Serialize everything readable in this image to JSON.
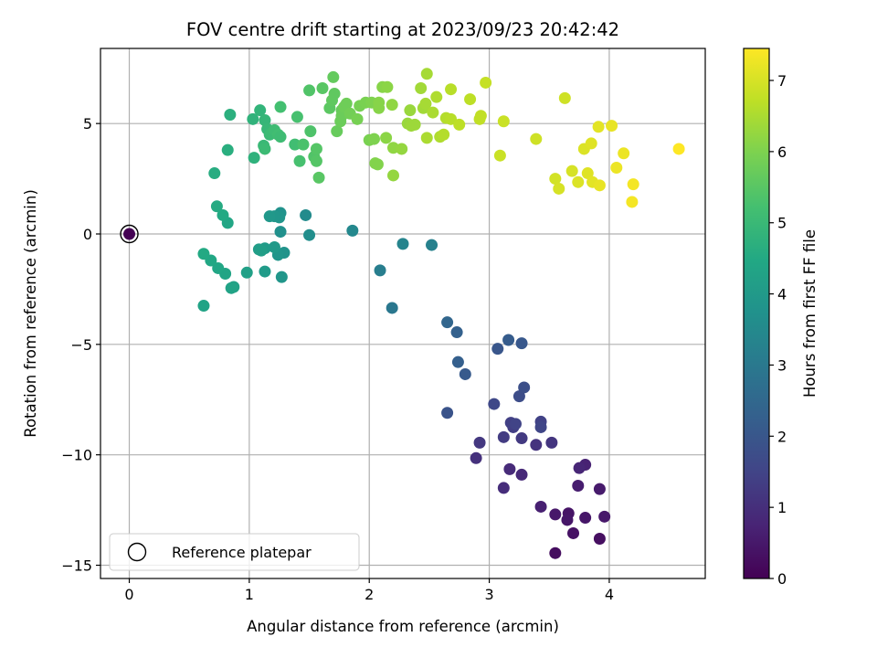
{
  "chart_data": {
    "type": "scatter",
    "title": "FOV centre drift starting at 2023/09/23 20:42:42",
    "xlabel": "Angular distance from reference (arcmin)",
    "ylabel": "Rotation from reference (arcmin)",
    "xlim": [
      -0.24,
      4.8
    ],
    "ylim": [
      -15.6,
      8.4
    ],
    "x_ticks": [
      0,
      1,
      2,
      3,
      4
    ],
    "x_tick_labels": [
      "0",
      "1",
      "2",
      "3",
      "4"
    ],
    "y_ticks": [
      -15,
      -10,
      -5,
      0,
      5
    ],
    "y_tick_labels": [
      "−15",
      "−10",
      "−5",
      "0",
      "5"
    ],
    "grid": true,
    "colormap": "viridis",
    "colorbar": {
      "label": "Hours from first FF file",
      "min": 0,
      "max": 7.45,
      "ticks": [
        0,
        1,
        2,
        3,
        4,
        5,
        6,
        7
      ],
      "tick_labels": [
        "0",
        "1",
        "2",
        "3",
        "4",
        "5",
        "6",
        "7"
      ]
    },
    "legend": {
      "position": "lower-left",
      "entries": [
        {
          "label": "Reference platepar",
          "marker": "open-circle"
        }
      ]
    },
    "reference_point": {
      "x": 0,
      "y": 0,
      "c": 0
    },
    "points": [
      [
        3.55,
        -14.45,
        0.25
      ],
      [
        3.92,
        -13.8,
        0.3
      ],
      [
        3.7,
        -13.55,
        0.35
      ],
      [
        3.8,
        -12.85,
        0.45
      ],
      [
        3.96,
        -12.8,
        0.5
      ],
      [
        3.66,
        -12.65,
        0.4
      ],
      [
        3.55,
        -12.7,
        0.5
      ],
      [
        3.65,
        -12.95,
        0.45
      ],
      [
        3.43,
        -12.35,
        0.65
      ],
      [
        3.74,
        -11.4,
        0.6
      ],
      [
        3.92,
        -11.55,
        0.55
      ],
      [
        3.12,
        -11.5,
        0.95
      ],
      [
        3.8,
        -10.45,
        0.7
      ],
      [
        3.75,
        -10.6,
        0.8
      ],
      [
        3.27,
        -10.9,
        0.85
      ],
      [
        3.17,
        -10.65,
        0.9
      ],
      [
        2.89,
        -10.15,
        1.05
      ],
      [
        2.92,
        -9.45,
        1.2
      ],
      [
        3.39,
        -9.55,
        1.1
      ],
      [
        3.52,
        -9.45,
        1.15
      ],
      [
        3.27,
        -9.25,
        1.25
      ],
      [
        3.12,
        -9.2,
        1.3
      ],
      [
        3.2,
        -8.75,
        1.35
      ],
      [
        3.18,
        -8.55,
        1.4
      ],
      [
        3.22,
        -8.6,
        1.5
      ],
      [
        3.43,
        -8.5,
        1.45
      ],
      [
        3.43,
        -8.75,
        1.55
      ],
      [
        2.65,
        -8.1,
        1.9
      ],
      [
        3.04,
        -7.7,
        1.6
      ],
      [
        3.25,
        -7.35,
        1.75
      ],
      [
        3.29,
        -6.95,
        1.8
      ],
      [
        2.8,
        -6.35,
        2.1
      ],
      [
        2.74,
        -5.8,
        2.25
      ],
      [
        3.07,
        -5.2,
        2.0
      ],
      [
        3.27,
        -4.95,
        2.05
      ],
      [
        3.16,
        -4.8,
        2.15
      ],
      [
        2.73,
        -4.45,
        2.3
      ],
      [
        2.65,
        -4.0,
        2.45
      ],
      [
        2.19,
        -3.35,
        2.95
      ],
      [
        2.09,
        -1.65,
        3.15
      ],
      [
        2.28,
        -0.45,
        3.35
      ],
      [
        2.52,
        -0.5,
        3.25
      ],
      [
        1.86,
        0.15,
        3.45
      ],
      [
        1.5,
        -0.05,
        3.65
      ],
      [
        1.47,
        0.85,
        3.55
      ],
      [
        1.26,
        0.95,
        3.75
      ],
      [
        1.25,
        0.75,
        3.85
      ],
      [
        1.21,
        0.8,
        3.9
      ],
      [
        1.17,
        0.8,
        3.95
      ],
      [
        1.26,
        0.1,
        3.7
      ],
      [
        1.29,
        -0.85,
        3.8
      ],
      [
        1.24,
        -0.95,
        3.85
      ],
      [
        1.21,
        -0.6,
        4.0
      ],
      [
        1.13,
        -0.65,
        4.05
      ],
      [
        1.08,
        -0.7,
        4.1
      ],
      [
        1.1,
        -0.75,
        4.15
      ],
      [
        1.13,
        -1.7,
        4.05
      ],
      [
        1.27,
        -1.95,
        3.9
      ],
      [
        0.98,
        -1.75,
        4.2
      ],
      [
        0.87,
        -2.4,
        4.25
      ],
      [
        0.85,
        -2.45,
        4.3
      ],
      [
        0.8,
        -1.8,
        4.35
      ],
      [
        0.74,
        -1.55,
        4.4
      ],
      [
        0.68,
        -1.2,
        4.45
      ],
      [
        0.62,
        -0.9,
        4.5
      ],
      [
        0.62,
        -3.25,
        4.3
      ],
      [
        0.82,
        0.5,
        4.4
      ],
      [
        0.78,
        0.85,
        4.5
      ],
      [
        0.73,
        1.25,
        4.55
      ],
      [
        0.71,
        2.75,
        4.6
      ],
      [
        0.82,
        3.8,
        4.65
      ],
      [
        0.84,
        5.4,
        4.7
      ],
      [
        1.04,
        3.45,
        4.75
      ],
      [
        1.03,
        5.2,
        4.8
      ],
      [
        1.09,
        5.6,
        4.85
      ],
      [
        1.13,
        5.15,
        4.9
      ],
      [
        1.15,
        4.75,
        4.95
      ],
      [
        1.17,
        4.5,
        5.0
      ],
      [
        1.12,
        4.0,
        5.0
      ],
      [
        1.13,
        3.85,
        5.05
      ],
      [
        1.18,
        4.55,
        5.05
      ],
      [
        1.21,
        4.7,
        5.1
      ],
      [
        1.24,
        4.5,
        5.15
      ],
      [
        1.26,
        4.4,
        5.1
      ],
      [
        1.26,
        5.75,
        5.2
      ],
      [
        1.38,
        4.05,
        5.15
      ],
      [
        1.4,
        5.3,
        5.25
      ],
      [
        1.42,
        3.3,
        5.25
      ],
      [
        1.45,
        4.05,
        5.3
      ],
      [
        1.51,
        4.65,
        5.35
      ],
      [
        1.54,
        3.5,
        5.4
      ],
      [
        1.56,
        3.85,
        5.45
      ],
      [
        1.56,
        3.3,
        5.45
      ],
      [
        1.5,
        6.5,
        5.4
      ],
      [
        1.58,
        2.55,
        5.5
      ],
      [
        1.61,
        6.6,
        5.5
      ],
      [
        1.67,
        5.7,
        5.55
      ],
      [
        1.69,
        6.05,
        5.6
      ],
      [
        1.71,
        6.35,
        5.6
      ],
      [
        1.7,
        7.1,
        5.65
      ],
      [
        1.73,
        4.65,
        5.7
      ],
      [
        1.77,
        5.6,
        5.7
      ],
      [
        1.76,
        5.1,
        5.75
      ],
      [
        1.77,
        5.35,
        5.75
      ],
      [
        1.79,
        5.75,
        5.8
      ],
      [
        1.81,
        5.9,
        5.8
      ],
      [
        1.84,
        5.45,
        5.85
      ],
      [
        1.9,
        5.2,
        5.9
      ],
      [
        1.92,
        5.8,
        5.9
      ],
      [
        1.97,
        5.95,
        5.95
      ],
      [
        2.0,
        4.25,
        5.95
      ],
      [
        2.02,
        5.95,
        6.0
      ],
      [
        2.04,
        4.3,
        6.0
      ],
      [
        2.05,
        3.2,
        6.05
      ],
      [
        2.07,
        3.15,
        6.05
      ],
      [
        2.08,
        5.7,
        6.1
      ],
      [
        2.08,
        5.95,
        6.1
      ],
      [
        2.11,
        6.65,
        6.1
      ],
      [
        2.14,
        4.35,
        6.15
      ],
      [
        2.15,
        6.65,
        6.15
      ],
      [
        2.19,
        5.85,
        6.2
      ],
      [
        2.2,
        3.9,
        6.2
      ],
      [
        2.2,
        2.65,
        6.25
      ],
      [
        2.27,
        3.85,
        6.25
      ],
      [
        2.32,
        5.0,
        6.3
      ],
      [
        2.34,
        5.6,
        6.3
      ],
      [
        2.35,
        4.9,
        6.35
      ],
      [
        2.38,
        4.95,
        6.35
      ],
      [
        2.43,
        6.6,
        6.4
      ],
      [
        2.45,
        5.7,
        6.4
      ],
      [
        2.47,
        5.9,
        6.45
      ],
      [
        2.48,
        7.25,
        6.45
      ],
      [
        2.48,
        4.35,
        6.5
      ],
      [
        2.53,
        5.5,
        6.5
      ],
      [
        2.56,
        6.2,
        6.55
      ],
      [
        2.59,
        4.4,
        6.55
      ],
      [
        2.62,
        4.5,
        6.6
      ],
      [
        2.64,
        5.25,
        6.6
      ],
      [
        2.68,
        5.2,
        6.65
      ],
      [
        2.68,
        6.55,
        6.65
      ],
      [
        2.75,
        4.95,
        6.7
      ],
      [
        2.84,
        6.1,
        6.7
      ],
      [
        2.92,
        5.2,
        6.75
      ],
      [
        2.93,
        5.35,
        6.75
      ],
      [
        2.97,
        6.85,
        6.8
      ],
      [
        3.09,
        3.55,
        6.85
      ],
      [
        3.12,
        5.1,
        6.85
      ],
      [
        3.39,
        4.3,
        6.9
      ],
      [
        3.55,
        2.5,
        6.95
      ],
      [
        3.58,
        2.05,
        7.0
      ],
      [
        3.63,
        6.15,
        6.9
      ],
      [
        3.69,
        2.85,
        7.0
      ],
      [
        3.74,
        2.35,
        7.05
      ],
      [
        3.79,
        3.85,
        7.05
      ],
      [
        3.82,
        2.75,
        7.1
      ],
      [
        3.85,
        4.1,
        7.1
      ],
      [
        3.86,
        2.35,
        7.15
      ],
      [
        3.91,
        4.85,
        7.15
      ],
      [
        3.92,
        2.2,
        7.2
      ],
      [
        4.02,
        4.9,
        7.2
      ],
      [
        4.06,
        3.0,
        7.25
      ],
      [
        4.12,
        3.65,
        7.25
      ],
      [
        4.19,
        1.45,
        7.35
      ],
      [
        4.2,
        2.25,
        7.35
      ],
      [
        4.58,
        3.85,
        7.45
      ]
    ]
  }
}
